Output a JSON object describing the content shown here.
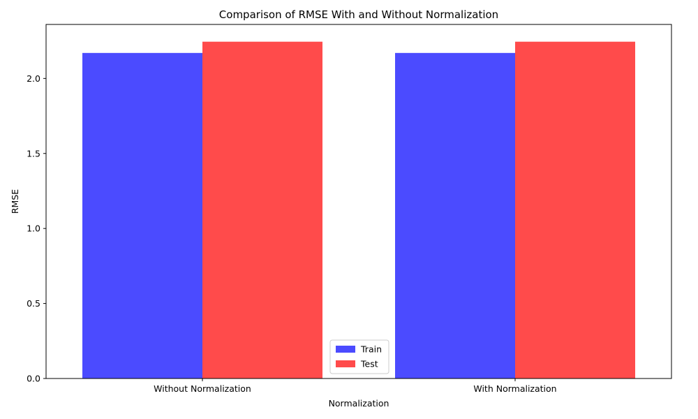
{
  "chart_data": {
    "type": "bar",
    "title": "Comparison of RMSE With and Without Normalization",
    "xlabel": "Normalization",
    "ylabel": "RMSE",
    "categories": [
      "Without Normalization",
      "With Normalization"
    ],
    "series": [
      {
        "name": "Train",
        "values": [
          2.17,
          2.17
        ],
        "color": "#4b4bff"
      },
      {
        "name": "Test",
        "values": [
          2.245,
          2.245
        ],
        "color": "#ff4b4b"
      }
    ],
    "ylim": [
      0,
      2.36
    ],
    "yticks": [
      0.0,
      0.5,
      1.0,
      1.5,
      2.0
    ],
    "ytick_labels": [
      "0.0",
      "0.5",
      "1.0",
      "1.5",
      "2.0"
    ],
    "grid": false,
    "legend_position": "lower center"
  }
}
